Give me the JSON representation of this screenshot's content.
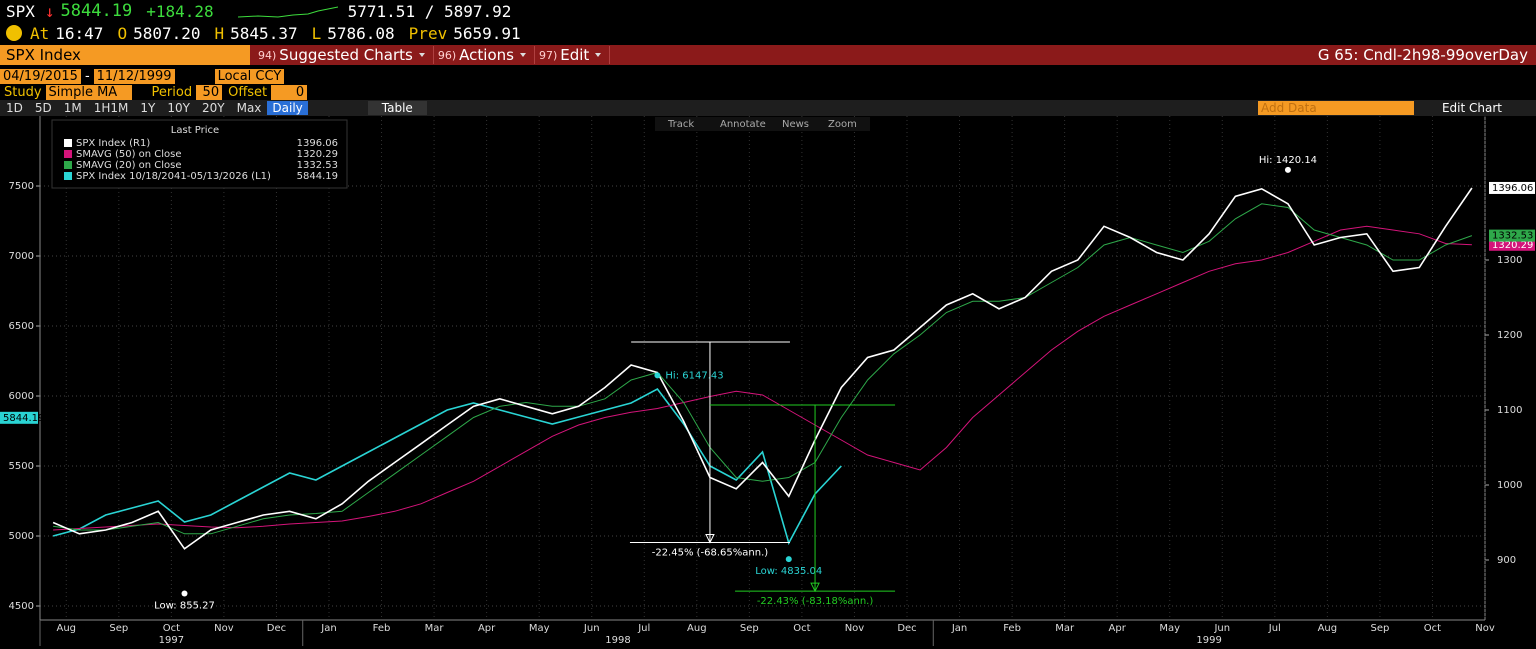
{
  "header": {
    "ticker": "SPX",
    "direction": "↓",
    "last": "5844.19",
    "change": "+184.28",
    "bid_ask": "5771.51 / 5897.92",
    "quote": [
      {
        "label": "At",
        "value": "16:47"
      },
      {
        "label": "O",
        "value": "5807.20"
      },
      {
        "label": "H",
        "value": "5845.37"
      },
      {
        "label": "L",
        "value": "5786.08"
      },
      {
        "label": "Prev",
        "value": "5659.91"
      }
    ]
  },
  "toolbar": {
    "security": "SPX Index",
    "menus": [
      {
        "num": "94)",
        "label": "Suggested Charts"
      },
      {
        "num": "96)",
        "label": "Actions"
      },
      {
        "num": "97)",
        "label": "Edit"
      }
    ],
    "chart_name": "G 65: Cndl-2h98-99overDay"
  },
  "controls": {
    "start": "04/19/2015",
    "separator": "-",
    "end": "11/12/1999",
    "currency": "Local CCY",
    "study_label": "Study",
    "study": "Simple MA",
    "period_label": "Period",
    "period": "50",
    "offset_label": "Offset",
    "offset": "0",
    "ranges": [
      "1D",
      "5D",
      "1M",
      "1H1M",
      "1Y",
      "10Y",
      "20Y",
      "Max"
    ],
    "frequency": "Daily",
    "table": "Table",
    "add_data": "Add Data",
    "edit_chart": "Edit Chart"
  },
  "chart_tools": [
    "Track",
    "Annotate",
    "News",
    "Zoom"
  ],
  "chart_data": {
    "type": "line",
    "legend_title": "Last Price",
    "categories": [
      "Aug",
      null,
      "Sep",
      null,
      "Oct",
      null,
      "Nov",
      null,
      "Dec",
      null,
      "Jan",
      null,
      "Feb",
      null,
      "Mar",
      null,
      "Apr",
      null,
      "May",
      null,
      "Jun",
      null,
      "Jul",
      null,
      "Aug",
      null,
      "Sep",
      null,
      "Oct",
      null,
      "Nov",
      null,
      "Dec",
      null,
      "Jan",
      null,
      "Feb",
      null,
      "Mar",
      null,
      "Apr",
      null,
      "May",
      null,
      "Jun",
      null,
      "Jul",
      null,
      "Aug",
      null,
      "Sep",
      null,
      "Oct",
      null,
      "Nov"
    ],
    "x_groups": [
      {
        "label": "1997",
        "start": 0,
        "end": 9
      },
      {
        "label": "1998",
        "start": 10,
        "end": 33
      },
      {
        "label": "1999",
        "start": 34,
        "end": 54
      }
    ],
    "ylim": [
      4400,
      8000
    ],
    "yticks": [
      4500,
      5000,
      5500,
      6000,
      6500,
      7000,
      7500
    ],
    "y2lim": [
      820,
      1492
    ],
    "y2ticks": [
      900,
      1000,
      1100,
      1200,
      1300
    ],
    "grid": true,
    "series": [
      {
        "name": "SPX Index  (R1)",
        "color": "#ffffff",
        "axis": "y2",
        "last": 1396.06,
        "values": [
          950,
          935,
          940,
          950,
          965,
          915,
          940,
          950,
          960,
          965,
          955,
          975,
          1005,
          1030,
          1055,
          1080,
          1105,
          1115,
          1105,
          1095,
          1105,
          1130,
          1160,
          1150,
          1085,
          1010,
          995,
          1030,
          985,
          1060,
          1130,
          1170,
          1180,
          1210,
          1240,
          1255,
          1235,
          1250,
          1285,
          1300,
          1345,
          1330,
          1310,
          1300,
          1335,
          1385,
          1395,
          1375,
          1320,
          1330,
          1335,
          1285,
          1290,
          1345,
          1396.06
        ]
      },
      {
        "name": "SMAVG (50)  on Close",
        "color": "#d4147a",
        "axis": "y2",
        "last": 1320.29,
        "values": [
          940,
          942,
          944,
          946,
          948,
          946,
          944,
          943,
          945,
          948,
          950,
          952,
          958,
          965,
          975,
          990,
          1005,
          1025,
          1045,
          1065,
          1080,
          1090,
          1097,
          1102,
          1110,
          1118,
          1125,
          1120,
          1100,
          1080,
          1060,
          1040,
          1030,
          1020,
          1050,
          1090,
          1120,
          1150,
          1180,
          1205,
          1225,
          1240,
          1255,
          1270,
          1285,
          1295,
          1300,
          1310,
          1325,
          1340,
          1345,
          1340,
          1335,
          1322,
          1320.29
        ]
      },
      {
        "name": "SMAVG (20)  on Close",
        "color": "#2ea84a",
        "axis": "y2",
        "last": 1332.53,
        "values": [
          945,
          940,
          940,
          945,
          950,
          935,
          935,
          945,
          955,
          960,
          962,
          965,
          990,
          1015,
          1040,
          1065,
          1090,
          1105,
          1110,
          1105,
          1105,
          1115,
          1140,
          1150,
          1110,
          1050,
          1010,
          1005,
          1010,
          1030,
          1090,
          1140,
          1175,
          1200,
          1230,
          1245,
          1245,
          1250,
          1270,
          1290,
          1320,
          1330,
          1320,
          1310,
          1325,
          1355,
          1375,
          1370,
          1340,
          1330,
          1320,
          1300,
          1300,
          1320,
          1332.53
        ]
      },
      {
        "name": "SPX Index 10/18/2041-05/13/2026  (L1)",
        "color": "#2ad4d4",
        "axis": "y",
        "last": 5844.19,
        "values": [
          5000,
          5050,
          5150,
          5200,
          5250,
          5100,
          5150,
          5250,
          5350,
          5450,
          5400,
          5500,
          5600,
          5700,
          5800,
          5900,
          5950,
          5900,
          5850,
          5800,
          5850,
          5900,
          5950,
          6050,
          5800,
          5500,
          5400,
          5600,
          4950,
          5300,
          5500,
          null,
          null,
          null,
          null,
          null,
          null,
          null,
          null,
          null,
          null,
          null,
          null,
          null,
          null,
          null,
          null,
          null,
          null,
          null,
          null,
          null,
          null,
          null,
          null
        ]
      }
    ],
    "annotations": [
      {
        "text": "Low: 855.27",
        "index": 5,
        "value": 855.27,
        "axis": "y2",
        "color": "#ffffff",
        "position": "below"
      },
      {
        "text": "Hi: 1420.14",
        "index": 47,
        "value": 1420.14,
        "axis": "y2",
        "color": "#ffffff",
        "position": "above"
      },
      {
        "text": "Hi: 6147.43",
        "index": 23,
        "value": 6147.43,
        "axis": "y",
        "color": "#2ad4d4",
        "position": "right"
      },
      {
        "text": "Low: 4835.04",
        "index": 28,
        "value": 4835.04,
        "axis": "y",
        "color": "#2ad4d4",
        "position": "below"
      }
    ],
    "measurements": [
      {
        "label": "-22.45% (-68.65%ann.)",
        "from": 22,
        "to": 25,
        "start": 1190.67,
        "end": 923.36,
        "color": "#ffffff"
      },
      {
        "label": "-22.43% (-83.18%ann.)",
        "from": 25,
        "to": 29,
        "start": 1106.67,
        "end": 858.45,
        "color": "#22cc22"
      }
    ]
  }
}
